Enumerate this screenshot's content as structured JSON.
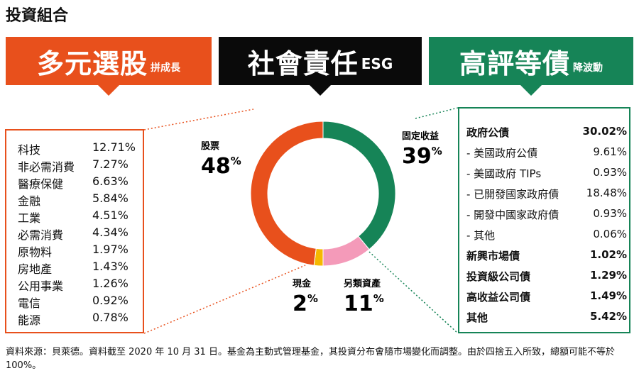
{
  "title": "投資組合",
  "banners": {
    "left": {
      "big": "多元選股",
      "small": "拼成長"
    },
    "middle": {
      "big": "社會責任",
      "small": "ESG"
    },
    "right": {
      "big": "高評等債",
      "small": "降波動"
    }
  },
  "colors": {
    "orange": "#e8501c",
    "green": "#168457",
    "pink": "#f49ab9",
    "yellow": "#f5b800",
    "black": "#0a0a0a"
  },
  "equity_sectors": [
    {
      "label": "科技",
      "value": "12.71%"
    },
    {
      "label": "非必需消費",
      "value": "7.27%"
    },
    {
      "label": "醫療保健",
      "value": "6.63%"
    },
    {
      "label": "金融",
      "value": "5.84%"
    },
    {
      "label": "工業",
      "value": "4.51%"
    },
    {
      "label": "必需消費",
      "value": "4.34%"
    },
    {
      "label": "原物料",
      "value": "1.97%"
    },
    {
      "label": "房地產",
      "value": "1.43%"
    },
    {
      "label": "公用事業",
      "value": "1.26%"
    },
    {
      "label": "電信",
      "value": "0.92%"
    },
    {
      "label": "能源",
      "value": "0.78%"
    }
  ],
  "fixed_income": [
    {
      "label": "政府公債",
      "value": "30.02%",
      "bold": true
    },
    {
      "label": "- 美國政府公債",
      "value": "9.61%",
      "bold": false
    },
    {
      "label": "- 美國政府 TIPs",
      "value": "0.93%",
      "bold": false
    },
    {
      "label": "- 已開發國家政府債",
      "value": "18.48%",
      "bold": false
    },
    {
      "label": "- 開發中國家政府債",
      "value": "0.93%",
      "bold": false
    },
    {
      "label": "- 其他",
      "value": "0.06%",
      "bold": false
    },
    {
      "label": "新興市場債",
      "value": "1.02%",
      "bold": true
    },
    {
      "label": "投資級公司債",
      "value": "1.29%",
      "bold": true
    },
    {
      "label": "高收益公司債",
      "value": "1.49%",
      "bold": true
    },
    {
      "label": "其他",
      "value": "5.42%",
      "bold": true
    }
  ],
  "chart_data": {
    "type": "pie",
    "donut": true,
    "slices": [
      {
        "label": "固定收益",
        "value": 39,
        "color": "#168457"
      },
      {
        "label": "另類資產",
        "value": 11,
        "color": "#f49ab9"
      },
      {
        "label": "現金",
        "value": 2,
        "color": "#f5b800"
      },
      {
        "label": "股票",
        "value": 48,
        "color": "#e8501c"
      }
    ],
    "unit": "%"
  },
  "note": "資料來源：貝萊德。資料截至 2020 年 10 月 31 日。基金為主動式管理基金，其投資分布會隨市場變化而調整。由於四捨五入所致，總額可能不等於 100%。"
}
